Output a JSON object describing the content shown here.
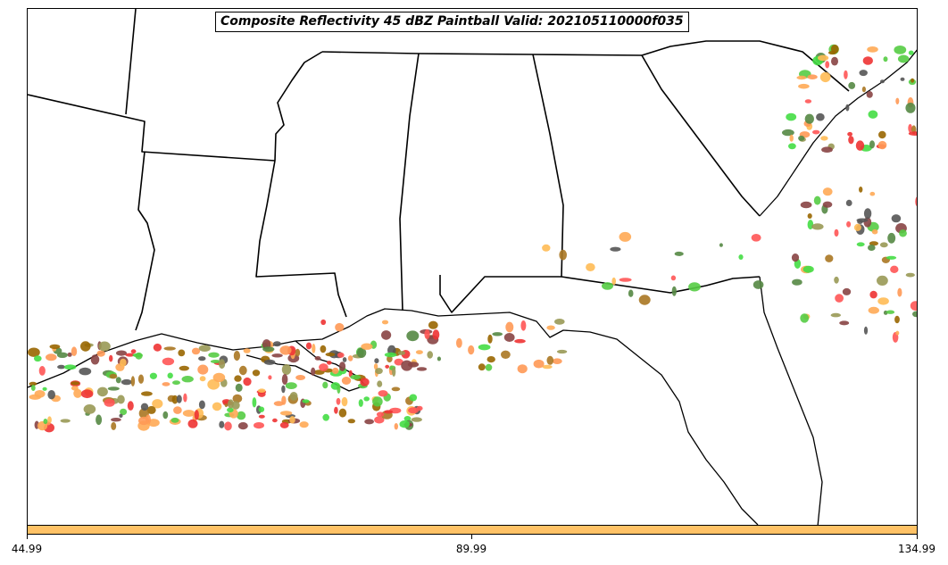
{
  "title": "Composite Reflectivity 45 dBZ Paintball Valid: 202105110000f035",
  "colorbar": {
    "color": "#ffc266",
    "ticks": [
      "44.99",
      "89.99",
      "134.99"
    ]
  },
  "palette": [
    "#55cc44",
    "#44dd44",
    "#ff5555",
    "#ee3333",
    "#ff9955",
    "#ffaa55",
    "#aa7722",
    "#996600",
    "#999955",
    "#558844",
    "#884444",
    "#555555",
    "#ffbb55"
  ]
}
